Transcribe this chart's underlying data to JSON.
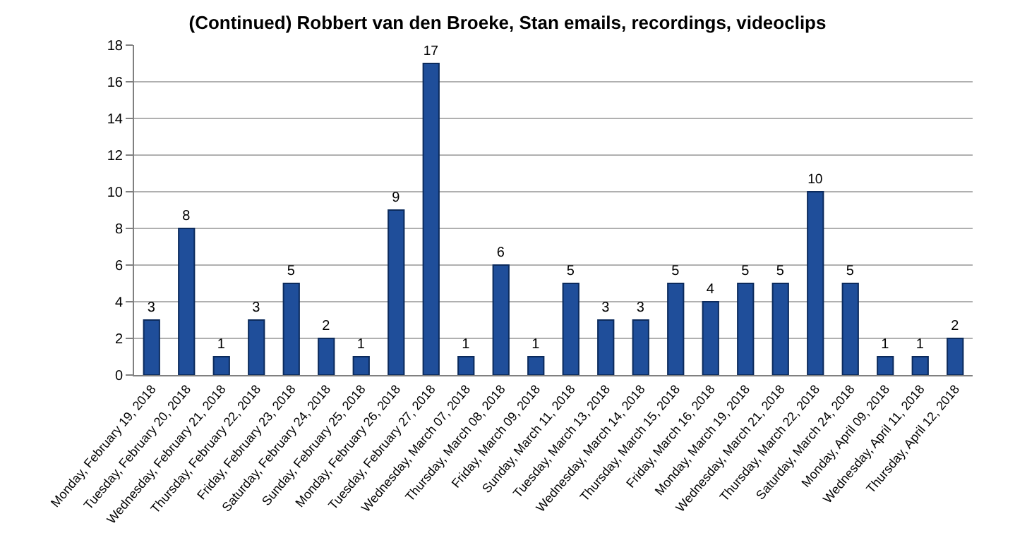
{
  "chart_data": {
    "type": "bar",
    "title": "(Continued) Robbert van den Broeke, Stan emails, recordings, videoclips",
    "categories": [
      "Monday, February 19, 2018",
      "Tuesday, February 20, 2018",
      "Wednesday, February 21, 2018",
      "Thursday, February 22, 2018",
      "Friday, February 23, 2018",
      "Saturday, February 24, 2018",
      "Sunday, February 25, 2018",
      "Monday, February 26, 2018",
      "Tuesday, February 27, 2018",
      "Wednesday, March 07, 2018",
      "Thursday, March 08, 2018",
      "Friday, March 09, 2018",
      "Sunday, March 11, 2018",
      "Tuesday, March 13, 2018",
      "Wednesday, March 14, 2018",
      "Thursday, March 15, 2018",
      "Friday, March 16, 2018",
      "Monday, March 19, 2018",
      "Wednesday, March 21, 2018",
      "Thursday, March 22, 2018",
      "Saturday, March 24, 2018",
      "Monday, April 09, 2018",
      "Wednesday, April 11, 2018",
      "Thursday, April 12, 2018"
    ],
    "values": [
      3,
      8,
      1,
      3,
      5,
      2,
      1,
      9,
      17,
      1,
      6,
      1,
      5,
      3,
      3,
      5,
      4,
      5,
      5,
      10,
      5,
      1,
      1,
      2
    ],
    "color": "#1f4e9a",
    "ylim": [
      0,
      18
    ],
    "yticks": [
      0,
      2,
      4,
      6,
      8,
      10,
      12,
      14,
      16,
      18
    ],
    "grid": "y",
    "data_labels": true,
    "legend": false
  }
}
